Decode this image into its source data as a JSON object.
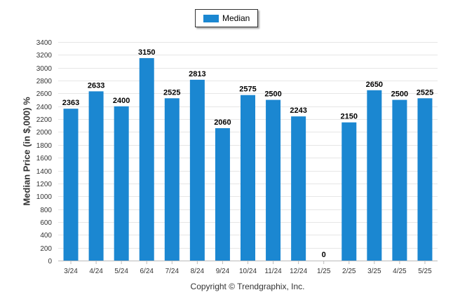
{
  "legend": {
    "label": "Median",
    "color": "#1b87d1"
  },
  "copyright": "Copyright © Trendgraphix, Inc.",
  "chart_data": {
    "type": "bar",
    "ylabel": "Median Price (in $,000) %",
    "xlabel": "",
    "title": "",
    "ylim": [
      0,
      3400
    ],
    "ytick_step": 200,
    "grid": true,
    "legend_position": "top-center",
    "categories": [
      "3/24",
      "4/24",
      "5/24",
      "6/24",
      "7/24",
      "8/24",
      "9/24",
      "10/24",
      "11/24",
      "12/24",
      "1/25",
      "2/25",
      "3/25",
      "4/25",
      "5/25"
    ],
    "series": [
      {
        "name": "Median",
        "color": "#1b87d1",
        "values": [
          2363,
          2633,
          2400,
          3150,
          2525,
          2813,
          2060,
          2575,
          2500,
          2243,
          0,
          2150,
          2650,
          2500,
          2525
        ]
      }
    ]
  }
}
